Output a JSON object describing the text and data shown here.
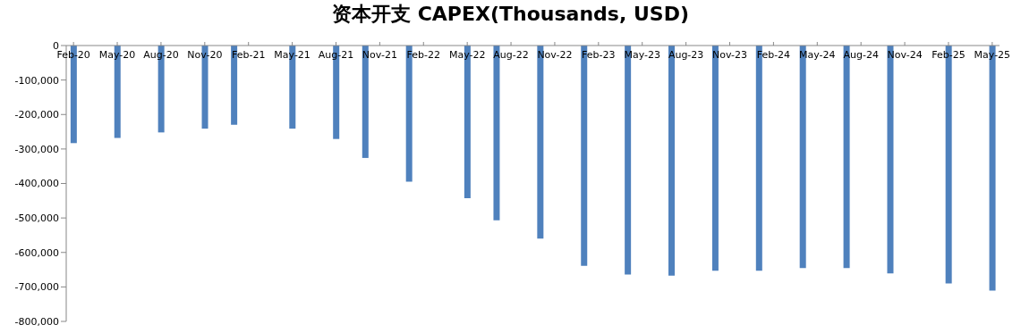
{
  "chart_data": {
    "type": "bar",
    "title": "资本开支 CAPEX(Thousands, USD)",
    "x": [
      "2020-02",
      "2020-05",
      "2020-08",
      "2020-11",
      "2021-01",
      "2021-05",
      "2021-08",
      "2021-10",
      "2022-01",
      "2022-05",
      "2022-07",
      "2022-10",
      "2023-01",
      "2023-04",
      "2023-07",
      "2023-10",
      "2024-01",
      "2024-04",
      "2024-07",
      "2024-10",
      "2025-02",
      "2025-05"
    ],
    "values": [
      -283000,
      -268000,
      -252000,
      -241000,
      -230000,
      -241000,
      -271000,
      -326000,
      -395000,
      -443000,
      -507000,
      -560000,
      -639000,
      -664000,
      -667000,
      -653000,
      -653000,
      -645000,
      -645000,
      -661000,
      -690000,
      -711000
    ],
    "color": "#4f81bd",
    "xlim": [
      "2020-02",
      "2025-05"
    ],
    "xticks": [
      {
        "value": "2020-02",
        "label": "Feb-20"
      },
      {
        "value": "2020-05",
        "label": "May-20"
      },
      {
        "value": "2020-08",
        "label": "Aug-20"
      },
      {
        "value": "2020-11",
        "label": "Nov-20"
      },
      {
        "value": "2021-02",
        "label": "Feb-21"
      },
      {
        "value": "2021-05",
        "label": "May-21"
      },
      {
        "value": "2021-08",
        "label": "Aug-21"
      },
      {
        "value": "2021-11",
        "label": "Nov-21"
      },
      {
        "value": "2022-02",
        "label": "Feb-22"
      },
      {
        "value": "2022-05",
        "label": "May-22"
      },
      {
        "value": "2022-08",
        "label": "Aug-22"
      },
      {
        "value": "2022-11",
        "label": "Nov-22"
      },
      {
        "value": "2023-02",
        "label": "Feb-23"
      },
      {
        "value": "2023-05",
        "label": "May-23"
      },
      {
        "value": "2023-08",
        "label": "Aug-23"
      },
      {
        "value": "2023-11",
        "label": "Nov-23"
      },
      {
        "value": "2024-02",
        "label": "Feb-24"
      },
      {
        "value": "2024-05",
        "label": "May-24"
      },
      {
        "value": "2024-08",
        "label": "Aug-24"
      },
      {
        "value": "2024-11",
        "label": "Nov-24"
      },
      {
        "value": "2025-02",
        "label": "Feb-25"
      },
      {
        "value": "2025-05",
        "label": "May-25"
      }
    ],
    "ylim": [
      -800000,
      0
    ],
    "yticks": [
      {
        "value": -800000,
        "label": "-800,000"
      },
      {
        "value": -700000,
        "label": "-700,000"
      },
      {
        "value": -600000,
        "label": "-600,000"
      },
      {
        "value": -500000,
        "label": "-500,000"
      },
      {
        "value": -400000,
        "label": "-400,000"
      },
      {
        "value": -300000,
        "label": "-300,000"
      },
      {
        "value": -200000,
        "label": "-200,000"
      },
      {
        "value": -100000,
        "label": "-100,000"
      },
      {
        "value": 0,
        "label": "0"
      }
    ],
    "grid": false,
    "legend": false
  }
}
